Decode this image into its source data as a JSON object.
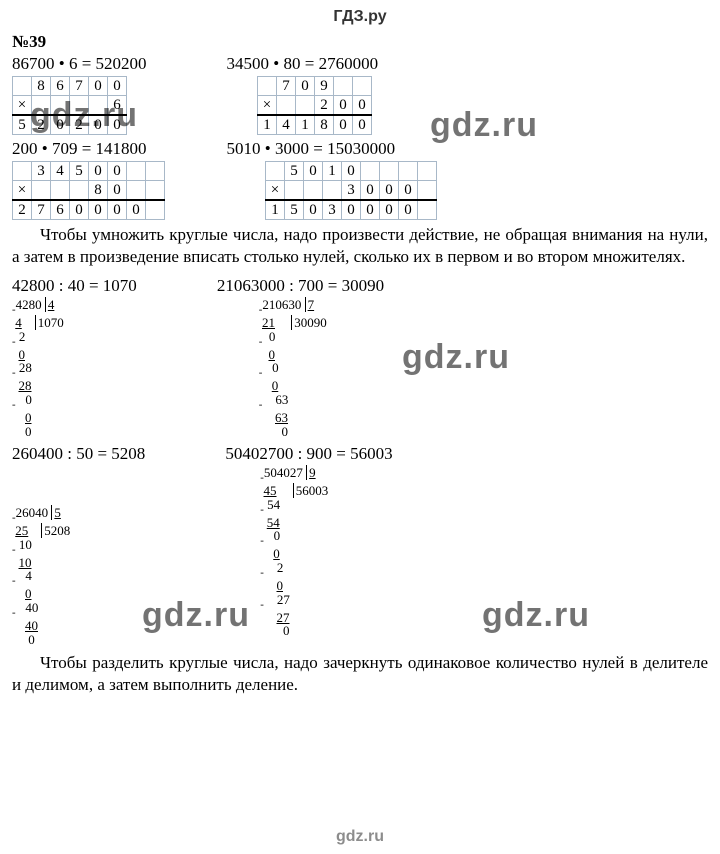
{
  "header": "ГДЗ.ру",
  "problem_number": "№39",
  "eq1a": "86700 • 6 = 520200",
  "eq1b": "34500 • 80 = 2760000",
  "eq2a": "200 • 709 = 141800",
  "eq2b": "5010 • 3000 = 15030000",
  "mult1": {
    "r1": [
      "",
      "8",
      "6",
      "7",
      "0",
      "0"
    ],
    "r2": [
      "×",
      "",
      "",
      "",
      "",
      "6"
    ],
    "r3": [
      "5",
      "2",
      "0",
      "2",
      "0",
      "0"
    ]
  },
  "mult2": {
    "r1": [
      "",
      "7",
      "0",
      "9",
      "",
      ""
    ],
    "r2": [
      "×",
      "",
      "",
      "2",
      "0",
      "0"
    ],
    "r3": [
      "1",
      "4",
      "1",
      "8",
      "0",
      "0"
    ]
  },
  "mult3": {
    "r1": [
      "",
      "3",
      "4",
      "5",
      "0",
      "0",
      "",
      ""
    ],
    "r2": [
      "×",
      "",
      "",
      "",
      "8",
      "0",
      "",
      ""
    ],
    "r3": [
      "2",
      "7",
      "6",
      "0",
      "0",
      "0",
      "0",
      ""
    ]
  },
  "mult4": {
    "r1": [
      "",
      "5",
      "0",
      "1",
      "0",
      "",
      "",
      "",
      ""
    ],
    "r2": [
      "×",
      "",
      "",
      "",
      "3",
      "0",
      "0",
      "0",
      ""
    ],
    "r3": [
      "1",
      "5",
      "0",
      "3",
      "0",
      "0",
      "0",
      "0",
      ""
    ]
  },
  "para1": "Чтобы умножить круглые числа, надо произвести действие, не обращая внимания на нули, а затем в произведение вписать столько нулей, сколько их в первом и во втором множителях.",
  "eq3a": "42800 : 40 = 1070",
  "eq3b": "21063000 : 700 = 30090",
  "eq4a": "260400 : 50 = 5208",
  "eq4b": "50402700 : 900 = 56003",
  "para2": "Чтобы разделить круглые числа, надо зачеркнуть одинаковое количество нулей в делителе и делимом, а затем выполнить деление.",
  "watermark": "gdz.ru",
  "footer": "gdz.ru",
  "ld1": {
    "dividend": "4280",
    "divisor": "4",
    "quot": "1070"
  },
  "ld2": {
    "dividend": "210630",
    "divisor": "7",
    "quot": "30090"
  },
  "ld3": {
    "dividend": "26040",
    "divisor": "5",
    "quot": "5208"
  },
  "ld4": {
    "dividend": "504027",
    "divisor": "9",
    "quot": "56003"
  }
}
